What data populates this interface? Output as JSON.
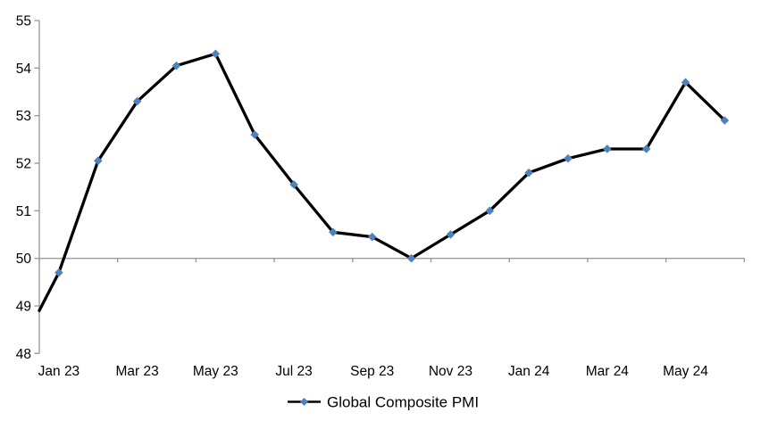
{
  "chart_data": {
    "type": "line",
    "title": "",
    "series": [
      {
        "name": "Global Composite PMI",
        "x": [
          "Jan 23",
          "Feb 23",
          "Mar 23",
          "Apr 23",
          "May 23",
          "Jun 23",
          "Jul 23",
          "Aug 23",
          "Sep 23",
          "Oct 23",
          "Nov 23",
          "Dec 23",
          "Jan 24",
          "Feb 24",
          "Mar 24",
          "Apr 24",
          "May 24",
          "Jun 24"
        ],
        "values": [
          49.7,
          52.05,
          53.3,
          54.05,
          54.3,
          52.6,
          51.55,
          50.55,
          50.45,
          50.0,
          50.5,
          51.0,
          51.8,
          52.1,
          52.3,
          52.3,
          53.7,
          52.9
        ]
      }
    ],
    "x_axis": {
      "tick_labels": [
        "Jan 23",
        "Mar 23",
        "May 23",
        "Jul 23",
        "Sep 23",
        "Nov 23",
        "Jan 24",
        "Mar 24",
        "May 24"
      ],
      "label_interval_months": 2,
      "tick_mark_interval_categories": 2
    },
    "y_axis": {
      "min": 48,
      "max": 55,
      "ticks": [
        55,
        54,
        53,
        52,
        51,
        50,
        49,
        48
      ],
      "category_axis_crosses_at": 50
    },
    "line_enters_left_edge_at_value": 48.9,
    "legend": {
      "label": "Global Composite PMI",
      "position": "bottom-center"
    },
    "grid": false,
    "colors": {
      "series_line": "#000000",
      "marker": "#4f81bd",
      "axis": "#9c9c9c",
      "label_text": "#000000"
    }
  }
}
